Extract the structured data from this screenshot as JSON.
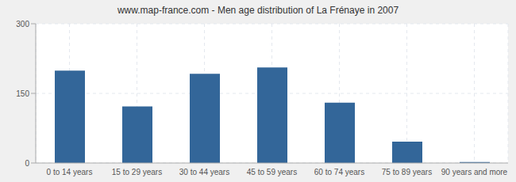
{
  "chart_data": {
    "type": "bar",
    "title": "www.map-france.com - Men age distribution of La Frénaye in 2007",
    "categories": [
      "0 to 14 years",
      "15 to 29 years",
      "30 to 44 years",
      "45 to 59 years",
      "60 to 74 years",
      "75 to 89 years",
      "90 years and more"
    ],
    "values": [
      199,
      122,
      192,
      206,
      130,
      46,
      2
    ],
    "color": "#336699",
    "ylim": [
      0,
      300
    ],
    "yticks": [
      0,
      150,
      300
    ],
    "grid": true
  }
}
